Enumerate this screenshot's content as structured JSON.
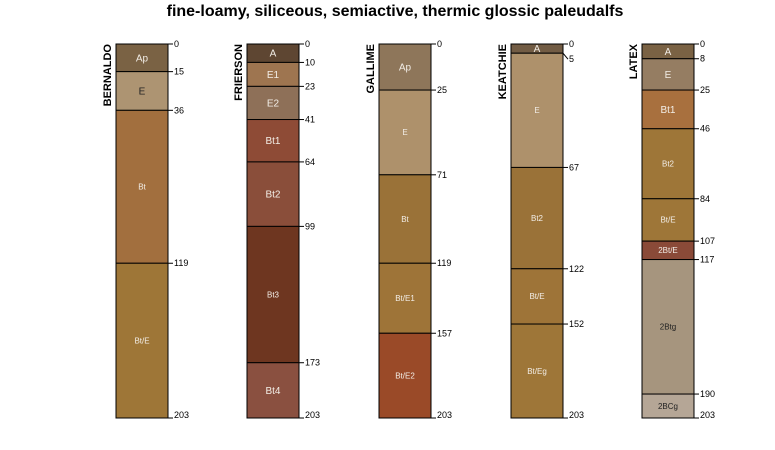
{
  "chart_data": {
    "type": "soil-profile",
    "title": "fine-loamy, siliceous, semiactive, thermic glossic paleudalfs",
    "max_depth": 203,
    "profiles": [
      {
        "name": "BERNALDO",
        "horizons": [
          {
            "name": "Ap",
            "top": 0,
            "bottom": 15,
            "color": "#7A6244"
          },
          {
            "name": "E",
            "top": 15,
            "bottom": 36,
            "color": "#AD9472"
          },
          {
            "name": "Bt",
            "top": 36,
            "bottom": 119,
            "color": "#A26F3E"
          },
          {
            "name": "Bt/E",
            "top": 119,
            "bottom": 203,
            "color": "#9E7637"
          }
        ]
      },
      {
        "name": "FRIERSON",
        "horizons": [
          {
            "name": "A",
            "top": 0,
            "bottom": 10,
            "color": "#5E4632"
          },
          {
            "name": "E1",
            "top": 10,
            "bottom": 23,
            "color": "#9E7550"
          },
          {
            "name": "E2",
            "top": 23,
            "bottom": 41,
            "color": "#8E7058"
          },
          {
            "name": "Bt1",
            "top": 41,
            "bottom": 64,
            "color": "#8E4B36"
          },
          {
            "name": "Bt2",
            "top": 64,
            "bottom": 99,
            "color": "#8A4E3A"
          },
          {
            "name": "Bt3",
            "top": 99,
            "bottom": 173,
            "color": "#6E3620"
          },
          {
            "name": "Bt4",
            "top": 173,
            "bottom": 203,
            "color": "#8A5040"
          }
        ]
      },
      {
        "name": "GALLIME",
        "horizons": [
          {
            "name": "Ap",
            "top": 0,
            "bottom": 25,
            "color": "#8E765A"
          },
          {
            "name": "E",
            "top": 25,
            "bottom": 71,
            "color": "#AE916B"
          },
          {
            "name": "Bt",
            "top": 71,
            "bottom": 119,
            "color": "#9A7238"
          },
          {
            "name": "Bt/E1",
            "top": 119,
            "bottom": 157,
            "color": "#9E7438"
          },
          {
            "name": "Bt/E2",
            "top": 157,
            "bottom": 203,
            "color": "#9A4A28"
          }
        ]
      },
      {
        "name": "KEATCHIE",
        "horizons": [
          {
            "name": "A",
            "top": 0,
            "bottom": 5,
            "color": "#725C44"
          },
          {
            "name": "E",
            "top": 5,
            "bottom": 67,
            "color": "#AE916B"
          },
          {
            "name": "Bt2",
            "top": 67,
            "bottom": 122,
            "color": "#9A7238"
          },
          {
            "name": "Bt/E",
            "top": 122,
            "bottom": 152,
            "color": "#9E7438"
          },
          {
            "name": "Bt/Eg",
            "top": 152,
            "bottom": 203,
            "color": "#9E7638"
          }
        ]
      },
      {
        "name": "LATEX",
        "horizons": [
          {
            "name": "A",
            "top": 0,
            "bottom": 8,
            "color": "#7A6244"
          },
          {
            "name": "E",
            "top": 8,
            "bottom": 25,
            "color": "#957D62"
          },
          {
            "name": "Bt1",
            "top": 25,
            "bottom": 46,
            "color": "#A8703E"
          },
          {
            "name": "Bt2",
            "top": 46,
            "bottom": 84,
            "color": "#9E7638"
          },
          {
            "name": "Bt/E",
            "top": 84,
            "bottom": 107,
            "color": "#9E7638"
          },
          {
            "name": "2Bt/E",
            "top": 107,
            "bottom": 117,
            "color": "#8A4A38"
          },
          {
            "name": "2Btg",
            "top": 117,
            "bottom": 190,
            "color": "#A6957E"
          },
          {
            "name": "2BCg",
            "top": 190,
            "bottom": 203,
            "color": "#B5A696"
          }
        ]
      }
    ]
  }
}
